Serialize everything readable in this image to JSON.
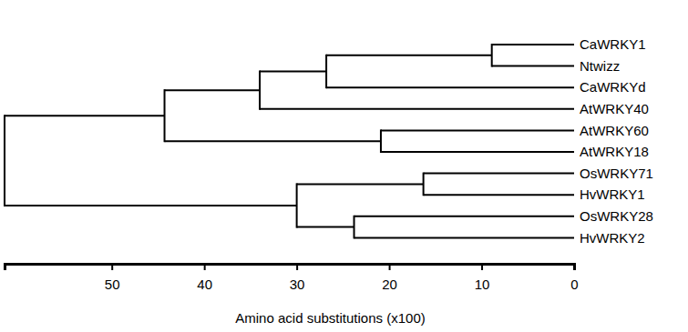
{
  "chart_data": {
    "type": "dendrogram",
    "x_label": "Amino acid substitutions (x100)",
    "xlim": [
      61.6,
      0
    ],
    "xticks": [
      0,
      10,
      20,
      30,
      40,
      50
    ],
    "tree": {
      "height": 61.6,
      "children": [
        {
          "height": 44.3,
          "children": [
            {
              "height": 34.0,
              "children": [
                {
                  "height": 26.8,
                  "children": [
                    {
                      "height": 8.9,
                      "children": [
                        {
                          "label": "CaWRKY1",
                          "height": 0
                        },
                        {
                          "label": "Ntwizz",
                          "height": 0
                        }
                      ]
                    },
                    {
                      "label": "CaWRKYd",
                      "height": 0
                    }
                  ]
                },
                {
                  "label": "AtWRKY40",
                  "height": 0
                }
              ]
            },
            {
              "height": 20.9,
              "children": [
                {
                  "label": "AtWRKY60",
                  "height": 0
                },
                {
                  "label": "AtWRKY18",
                  "height": 0
                }
              ]
            }
          ]
        },
        {
          "height": 30.0,
          "children": [
            {
              "height": 16.3,
              "children": [
                {
                  "label": "OsWRKY71",
                  "height": 0
                },
                {
                  "label": "HvWRKY1",
                  "height": 0
                }
              ]
            },
            {
              "height": 23.8,
              "children": [
                {
                  "label": "OsWRKY28",
                  "height": 0
                },
                {
                  "label": "HvWRKY2",
                  "height": 0
                }
              ]
            }
          ]
        }
      ]
    }
  }
}
